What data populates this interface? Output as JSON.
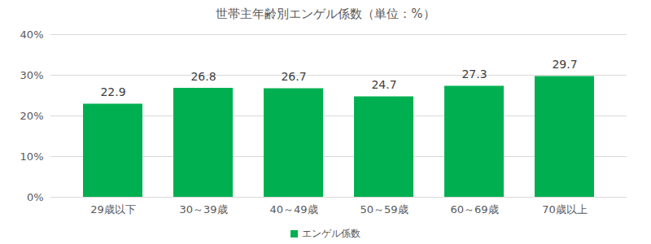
{
  "chart_data": {
    "type": "bar",
    "title": "世帯主年齢別エンゲル係数（単位：%）",
    "categories": [
      "29歳以下",
      "30～39歳",
      "40～49歳",
      "50～59歳",
      "60～69歳",
      "70歳以上"
    ],
    "series": [
      {
        "name": "エンゲル係数",
        "color": "#00b050",
        "values": [
          22.9,
          26.8,
          26.7,
          24.7,
          27.3,
          29.7
        ]
      }
    ],
    "ylim": [
      0,
      40
    ],
    "yticks": [
      {
        "value": 0,
        "label": "0%"
      },
      {
        "value": 10,
        "label": "10%"
      },
      {
        "value": 20,
        "label": "20%"
      },
      {
        "value": 30,
        "label": "30%"
      },
      {
        "value": 40,
        "label": "40%"
      }
    ],
    "grid": true,
    "data_labels": true,
    "legend": "bottom"
  }
}
